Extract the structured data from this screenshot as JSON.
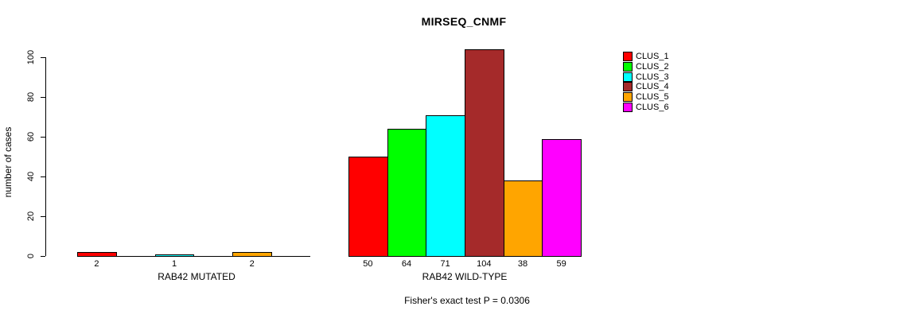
{
  "chart_data": {
    "type": "bar",
    "title": "MIRSEQ_CNMF",
    "ylabel": "number of cases",
    "ylim": [
      0,
      100
    ],
    "yticks": [
      0,
      20,
      40,
      60,
      80,
      100
    ],
    "grid": false,
    "legend_position": "right",
    "categories": [
      "RAB42 MUTATED",
      "RAB42 WILD-TYPE"
    ],
    "series": [
      {
        "name": "CLUS_1",
        "color": "#ff0000",
        "values": [
          2,
          50
        ]
      },
      {
        "name": "CLUS_2",
        "color": "#00ff00",
        "values": [
          0,
          64
        ]
      },
      {
        "name": "CLUS_3",
        "color": "#00ffff",
        "values": [
          1,
          71
        ]
      },
      {
        "name": "CLUS_4",
        "color": "#a52a2a",
        "values": [
          0,
          104
        ]
      },
      {
        "name": "CLUS_5",
        "color": "#ffa500",
        "values": [
          2,
          38
        ]
      },
      {
        "name": "CLUS_6",
        "color": "#ff00ff",
        "values": [
          0,
          59
        ]
      }
    ],
    "bar_value_labels": [
      [
        "2",
        "1",
        "2"
      ],
      [
        "50",
        "64",
        "71",
        "104",
        "38",
        "59"
      ]
    ],
    "zero_bars_hidden": true,
    "annotation": "Fisher's exact test P = 0.0306"
  }
}
